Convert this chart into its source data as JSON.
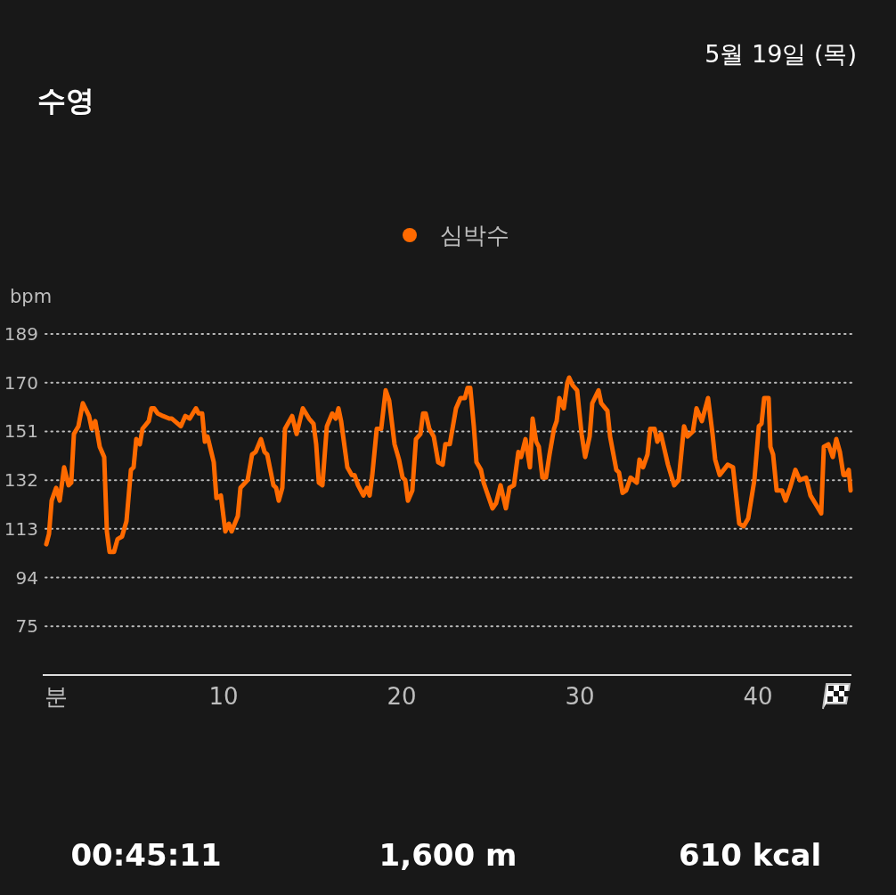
{
  "chart_data": {
    "type": "line",
    "title": "수영",
    "subtitle": "5월 19일 (목)",
    "ylabel": "bpm",
    "xlabel": "분",
    "xlim": [
      0,
      45.2
    ],
    "xticks": [
      10,
      20,
      30,
      40
    ],
    "ylim": [
      56,
      189
    ],
    "yticks": [
      75,
      94,
      113,
      132,
      151,
      170,
      189
    ],
    "grid": "y",
    "legend": "top",
    "marker": "none",
    "line_style": "solid",
    "annotations": [
      "00:45:11",
      "1,600 m",
      "610 kcal"
    ],
    "series": [
      {
        "name": "심박수",
        "color": "#ff6a00",
        "x": [
          0.05,
          0.2,
          0.35,
          0.6,
          0.8,
          1.05,
          1.3,
          1.45,
          1.6,
          1.85,
          2.1,
          2.45,
          2.6,
          2.8,
          3.05,
          3.3,
          3.45,
          3.6,
          3.85,
          4.05,
          4.3,
          4.55,
          4.8,
          4.95,
          5.1,
          5.3,
          5.45,
          5.8,
          5.95,
          6.1,
          6.3,
          6.6,
          6.95,
          7.1,
          7.6,
          7.85,
          8.1,
          8.45,
          8.6,
          8.8,
          8.95,
          9.1,
          9.45,
          9.6,
          9.85,
          10.1,
          10.3,
          10.45,
          10.8,
          10.95,
          11.35,
          11.6,
          11.8,
          12.1,
          12.3,
          12.45,
          12.8,
          12.95,
          13.1,
          13.3,
          13.45,
          13.85,
          14.1,
          14.45,
          14.8,
          15.05,
          15.2,
          15.35,
          15.55,
          15.8,
          16.1,
          16.3,
          16.45,
          16.6,
          16.95,
          17.2,
          17.35,
          17.55,
          17.7,
          17.85,
          18.05,
          18.2,
          18.35,
          18.6,
          18.85,
          19.1,
          19.3,
          19.6,
          19.85,
          20.05,
          20.2,
          20.35,
          20.6,
          20.8,
          21.05,
          21.2,
          21.35,
          21.55,
          21.8,
          22.05,
          22.3,
          22.45,
          22.7,
          23.05,
          23.3,
          23.55,
          23.7,
          23.85,
          24.05,
          24.2,
          24.45,
          24.6,
          25.1,
          25.3,
          25.55,
          25.85,
          26.05,
          26.3,
          26.55,
          26.7,
          26.95,
          27.2,
          27.35,
          27.55,
          27.7,
          27.9,
          28.1,
          28.3,
          28.55,
          28.7,
          28.85,
          29.1,
          29.3,
          29.4,
          29.6,
          29.85,
          30.1,
          30.3,
          30.55,
          30.7,
          31.05,
          31.2,
          31.55,
          31.7,
          32.05,
          32.2,
          32.4,
          32.6,
          32.85,
          33.2,
          33.35,
          33.55,
          33.8,
          33.95,
          34.2,
          34.35,
          34.55,
          34.95,
          35.3,
          35.55,
          35.85,
          36.05,
          36.35,
          36.55,
          36.85,
          37.2,
          37.45,
          37.6,
          37.85,
          38.3,
          38.6,
          38.95,
          39.2,
          39.45,
          39.8,
          40.05,
          40.2,
          40.35,
          40.6,
          40.7,
          40.85,
          41.05,
          41.35,
          41.55,
          41.8,
          42.1,
          42.35,
          42.7,
          42.95,
          43.3,
          43.55,
          43.7,
          43.95,
          44.2,
          44.4,
          44.6,
          44.8,
          44.95,
          45.1,
          45.2
        ],
        "values": [
          107,
          111,
          124,
          129,
          124,
          137,
          130,
          131,
          150,
          153,
          162,
          157,
          152,
          155,
          145,
          141,
          112,
          104,
          104,
          109,
          110,
          116,
          136,
          137,
          148,
          146,
          152,
          155,
          160,
          160,
          158,
          157,
          156,
          156,
          153,
          157,
          156,
          160,
          158,
          158,
          147,
          149,
          139,
          125,
          126,
          112,
          115,
          112,
          118,
          129,
          132,
          142,
          143,
          148,
          143,
          142,
          130,
          129,
          124,
          129,
          152,
          157,
          150,
          160,
          156,
          154,
          146,
          131,
          130,
          153,
          158,
          156,
          160,
          155,
          137,
          134,
          134,
          130,
          128,
          126,
          129,
          126,
          134,
          152,
          152,
          167,
          163,
          146,
          140,
          133,
          132,
          124,
          128,
          148,
          150,
          158,
          158,
          152,
          149,
          139,
          138,
          146,
          146,
          160,
          164,
          164,
          168,
          168,
          153,
          139,
          136,
          131,
          121,
          123,
          130,
          121,
          129,
          130,
          143,
          141,
          148,
          137,
          156,
          147,
          145,
          133,
          133,
          142,
          152,
          155,
          164,
          160,
          170,
          172,
          169,
          167,
          150,
          141,
          149,
          162,
          167,
          162,
          159,
          149,
          136,
          135,
          127,
          128,
          133,
          131,
          140,
          137,
          142,
          152,
          152,
          147,
          150,
          138,
          130,
          132,
          153,
          149,
          151,
          160,
          155,
          164,
          150,
          140,
          134,
          138,
          137,
          115,
          114,
          117,
          132,
          153,
          154,
          164,
          164,
          145,
          142,
          128,
          128,
          124,
          129,
          136,
          132,
          133,
          126,
          122,
          119,
          145,
          146,
          141,
          148,
          143,
          134,
          134,
          136,
          128
        ]
      }
    ]
  }
}
